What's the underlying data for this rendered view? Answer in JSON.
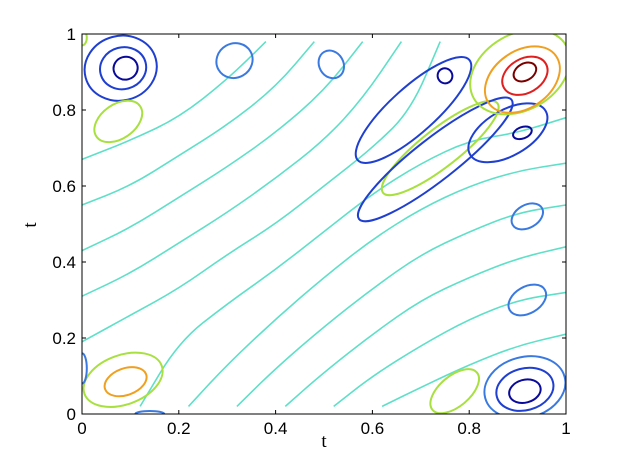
{
  "chart_data": {
    "type": "contour",
    "xlabel": "t",
    "ylabel": "t",
    "xlim": [
      0,
      1
    ],
    "ylim": [
      0,
      1
    ],
    "x_ticks": [
      0,
      0.2,
      0.4,
      0.6,
      0.8,
      1
    ],
    "x_tick_labels": [
      "0",
      "0.2",
      "0.4",
      "0.6",
      "0.8",
      "1"
    ],
    "y_ticks": [
      0,
      0.2,
      0.4,
      0.6,
      0.8,
      1
    ],
    "y_tick_labels": [
      "0",
      "0.2",
      "0.4",
      "0.6",
      "0.8",
      "1"
    ],
    "grid": false,
    "colormap": "jet",
    "level_colors": {
      "low_deep": "#0a0a9a",
      "low": "#1f3fd0",
      "low_mid": "#3a7ae0",
      "mid": "#5ee0c8",
      "mid_high": "#a8e040",
      "high": "#f0a020",
      "high_red": "#e02020",
      "peak": "#7a0000"
    },
    "diagonal_lines": [
      {
        "level": "mid",
        "points": [
          [
            0.0,
            0.67
          ],
          [
            0.1,
            0.72
          ],
          [
            0.2,
            0.78
          ],
          [
            0.3,
            0.88
          ],
          [
            0.38,
            0.98
          ]
        ]
      },
      {
        "level": "mid",
        "points": [
          [
            0.0,
            0.55
          ],
          [
            0.1,
            0.6
          ],
          [
            0.2,
            0.68
          ],
          [
            0.3,
            0.76
          ],
          [
            0.4,
            0.86
          ],
          [
            0.48,
            0.98
          ]
        ]
      },
      {
        "level": "mid",
        "points": [
          [
            0.0,
            0.43
          ],
          [
            0.1,
            0.49
          ],
          [
            0.2,
            0.57
          ],
          [
            0.3,
            0.65
          ],
          [
            0.4,
            0.74
          ],
          [
            0.5,
            0.85
          ],
          [
            0.58,
            0.98
          ]
        ]
      },
      {
        "level": "mid",
        "points": [
          [
            0.0,
            0.31
          ],
          [
            0.1,
            0.37
          ],
          [
            0.2,
            0.45
          ],
          [
            0.3,
            0.53
          ],
          [
            0.4,
            0.62
          ],
          [
            0.5,
            0.72
          ],
          [
            0.58,
            0.83
          ],
          [
            0.66,
            0.98
          ]
        ]
      },
      {
        "level": "mid",
        "points": [
          [
            0.0,
            0.19
          ],
          [
            0.1,
            0.26
          ],
          [
            0.2,
            0.33
          ],
          [
            0.3,
            0.42
          ],
          [
            0.4,
            0.5
          ],
          [
            0.5,
            0.6
          ],
          [
            0.6,
            0.7
          ],
          [
            0.68,
            0.8
          ],
          [
            0.74,
            0.98
          ]
        ]
      },
      {
        "level": "mid",
        "points": [
          [
            0.12,
            0.02
          ],
          [
            0.2,
            0.19
          ],
          [
            0.3,
            0.29
          ],
          [
            0.4,
            0.38
          ],
          [
            0.5,
            0.48
          ],
          [
            0.6,
            0.58
          ],
          [
            0.7,
            0.66
          ],
          [
            0.8,
            0.72
          ],
          [
            0.9,
            0.74
          ],
          [
            1.0,
            0.78
          ]
        ]
      },
      {
        "level": "mid",
        "points": [
          [
            0.22,
            0.02
          ],
          [
            0.3,
            0.13
          ],
          [
            0.4,
            0.25
          ],
          [
            0.5,
            0.36
          ],
          [
            0.6,
            0.46
          ],
          [
            0.7,
            0.54
          ],
          [
            0.8,
            0.6
          ],
          [
            0.9,
            0.64
          ],
          [
            1.0,
            0.66
          ]
        ]
      },
      {
        "level": "mid",
        "points": [
          [
            0.32,
            0.02
          ],
          [
            0.4,
            0.12
          ],
          [
            0.5,
            0.23
          ],
          [
            0.6,
            0.33
          ],
          [
            0.7,
            0.42
          ],
          [
            0.8,
            0.48
          ],
          [
            0.9,
            0.53
          ],
          [
            1.0,
            0.55
          ]
        ]
      },
      {
        "level": "mid",
        "points": [
          [
            0.42,
            0.02
          ],
          [
            0.5,
            0.11
          ],
          [
            0.6,
            0.21
          ],
          [
            0.7,
            0.3
          ],
          [
            0.8,
            0.36
          ],
          [
            0.9,
            0.41
          ],
          [
            1.0,
            0.44
          ]
        ]
      },
      {
        "level": "mid",
        "points": [
          [
            0.52,
            0.02
          ],
          [
            0.6,
            0.1
          ],
          [
            0.7,
            0.18
          ],
          [
            0.8,
            0.25
          ],
          [
            0.9,
            0.3
          ],
          [
            1.0,
            0.32
          ]
        ]
      },
      {
        "level": "mid",
        "points": [
          [
            0.62,
            0.02
          ],
          [
            0.7,
            0.07
          ],
          [
            0.8,
            0.13
          ],
          [
            0.9,
            0.18
          ],
          [
            1.0,
            0.21
          ]
        ]
      }
    ],
    "closed_contours": [
      {
        "level": "low",
        "cx": 0.08,
        "cy": 0.91,
        "rx": 0.075,
        "ry": 0.085,
        "rot": 15
      },
      {
        "level": "low",
        "cx": 0.085,
        "cy": 0.91,
        "rx": 0.048,
        "ry": 0.055,
        "rot": 15
      },
      {
        "level": "low_deep",
        "cx": 0.09,
        "cy": 0.91,
        "rx": 0.025,
        "ry": 0.03,
        "rot": 15
      },
      {
        "level": "mid_high",
        "cx": 0.075,
        "cy": 0.77,
        "rx": 0.055,
        "ry": 0.045,
        "rot": 35
      },
      {
        "level": "low_mid",
        "cx": 0.315,
        "cy": 0.93,
        "rx": 0.038,
        "ry": 0.045,
        "rot": 30
      },
      {
        "level": "low_mid",
        "cx": 0.515,
        "cy": 0.92,
        "rx": 0.025,
        "ry": 0.038,
        "rot": 30
      },
      {
        "level": "low",
        "cx": 0.685,
        "cy": 0.8,
        "rx": 0.155,
        "ry": 0.06,
        "rot": 42
      },
      {
        "level": "low_deep",
        "cx": 0.75,
        "cy": 0.89,
        "rx": 0.015,
        "ry": 0.02,
        "rot": 30
      },
      {
        "level": "mid_high",
        "cx": 0.74,
        "cy": 0.7,
        "rx": 0.15,
        "ry": 0.05,
        "rot": 38
      },
      {
        "level": "low",
        "cx": 0.73,
        "cy": 0.67,
        "rx": 0.2,
        "ry": 0.055,
        "rot": 38
      },
      {
        "level": "low",
        "cx": 0.88,
        "cy": 0.74,
        "rx": 0.09,
        "ry": 0.06,
        "rot": 30
      },
      {
        "level": "low_deep",
        "cx": 0.91,
        "cy": 0.74,
        "rx": 0.02,
        "ry": 0.015,
        "rot": 20
      },
      {
        "level": "mid_high",
        "cx": 0.905,
        "cy": 0.9,
        "rx": 0.11,
        "ry": 0.1,
        "rot": 30
      },
      {
        "level": "high",
        "cx": 0.91,
        "cy": 0.88,
        "rx": 0.085,
        "ry": 0.075,
        "rot": 35
      },
      {
        "level": "high_red",
        "cx": 0.915,
        "cy": 0.89,
        "rx": 0.05,
        "ry": 0.045,
        "rot": 30
      },
      {
        "level": "peak",
        "cx": 0.915,
        "cy": 0.9,
        "rx": 0.025,
        "ry": 0.022,
        "rot": 30
      },
      {
        "level": "low_mid",
        "cx": 0.92,
        "cy": 0.52,
        "rx": 0.035,
        "ry": 0.03,
        "rot": 30
      },
      {
        "level": "low_mid",
        "cx": 0.92,
        "cy": 0.3,
        "rx": 0.042,
        "ry": 0.035,
        "rot": 30
      },
      {
        "level": "low_mid",
        "cx": 0.915,
        "cy": 0.07,
        "rx": 0.085,
        "ry": 0.08,
        "rot": 15
      },
      {
        "level": "low",
        "cx": 0.915,
        "cy": 0.065,
        "rx": 0.06,
        "ry": 0.055,
        "rot": 15
      },
      {
        "level": "low_deep",
        "cx": 0.915,
        "cy": 0.06,
        "rx": 0.033,
        "ry": 0.03,
        "rot": 15
      },
      {
        "level": "mid_high",
        "cx": 0.77,
        "cy": 0.06,
        "rx": 0.06,
        "ry": 0.04,
        "rot": 40
      },
      {
        "level": "mid_high",
        "cx": 0.085,
        "cy": 0.09,
        "rx": 0.085,
        "ry": 0.065,
        "rot": 20
      },
      {
        "level": "high",
        "cx": 0.09,
        "cy": 0.085,
        "rx": 0.045,
        "ry": 0.035,
        "rot": 20
      },
      {
        "level": "low_mid",
        "cx": 0.0,
        "cy": 0.12,
        "rx": 0.01,
        "ry": 0.04,
        "rot": 0
      },
      {
        "level": "low_mid",
        "cx": 0.14,
        "cy": 0.0,
        "rx": 0.03,
        "ry": 0.008,
        "rot": 0
      },
      {
        "level": "mid_high",
        "cx": 0.0,
        "cy": 0.99,
        "rx": 0.01,
        "ry": 0.02,
        "rot": 0
      }
    ]
  }
}
